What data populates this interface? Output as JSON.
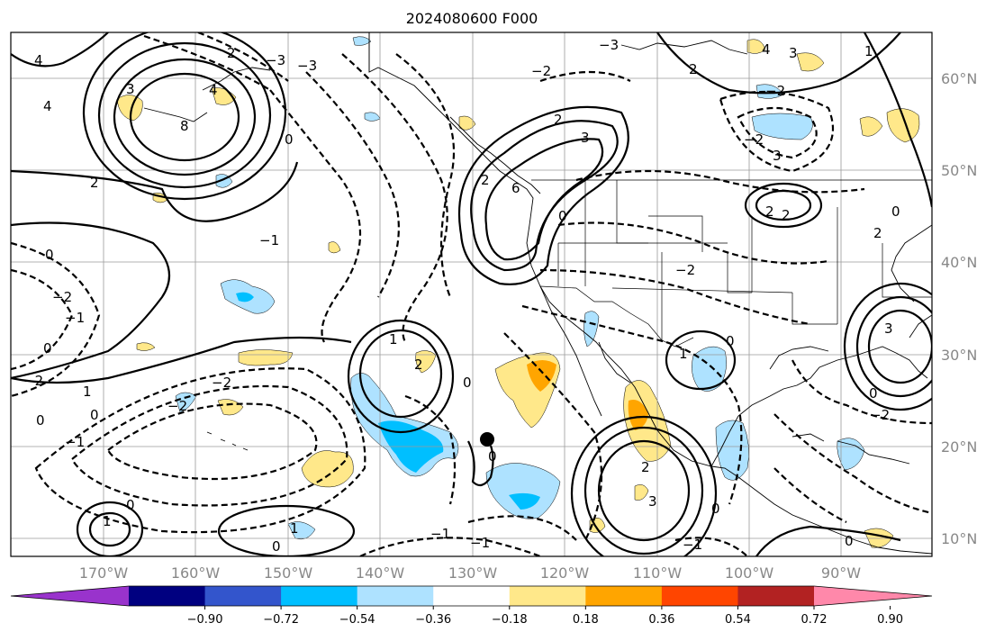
{
  "title": "2024080600 F000",
  "map": {
    "lat_labels": [
      "60°N",
      "50°N",
      "40°N",
      "30°N",
      "20°N",
      "10°N"
    ],
    "lon_labels": [
      "170°W",
      "160°W",
      "150°W",
      "140°W",
      "130°W",
      "120°W",
      "110°W",
      "100°W",
      "90°W"
    ]
  },
  "colorbar": {
    "colors": [
      "#9933cc",
      "#000080",
      "#3355cc",
      "#00bfff",
      "#aee2ff",
      "#ffffff",
      "#ffe88a",
      "#ffa500",
      "#ff4500",
      "#b22222",
      "#ff88aa"
    ],
    "tick_labels": [
      "−0.90",
      "−0.72",
      "−0.54",
      "−0.36",
      "−0.18",
      "0.18",
      "0.36",
      "0.54",
      "0.72",
      "0.90"
    ]
  },
  "contour_labels": [
    "3",
    "4",
    "2",
    "0",
    "1",
    "−1",
    "−2",
    "−3",
    "8",
    "6"
  ]
}
